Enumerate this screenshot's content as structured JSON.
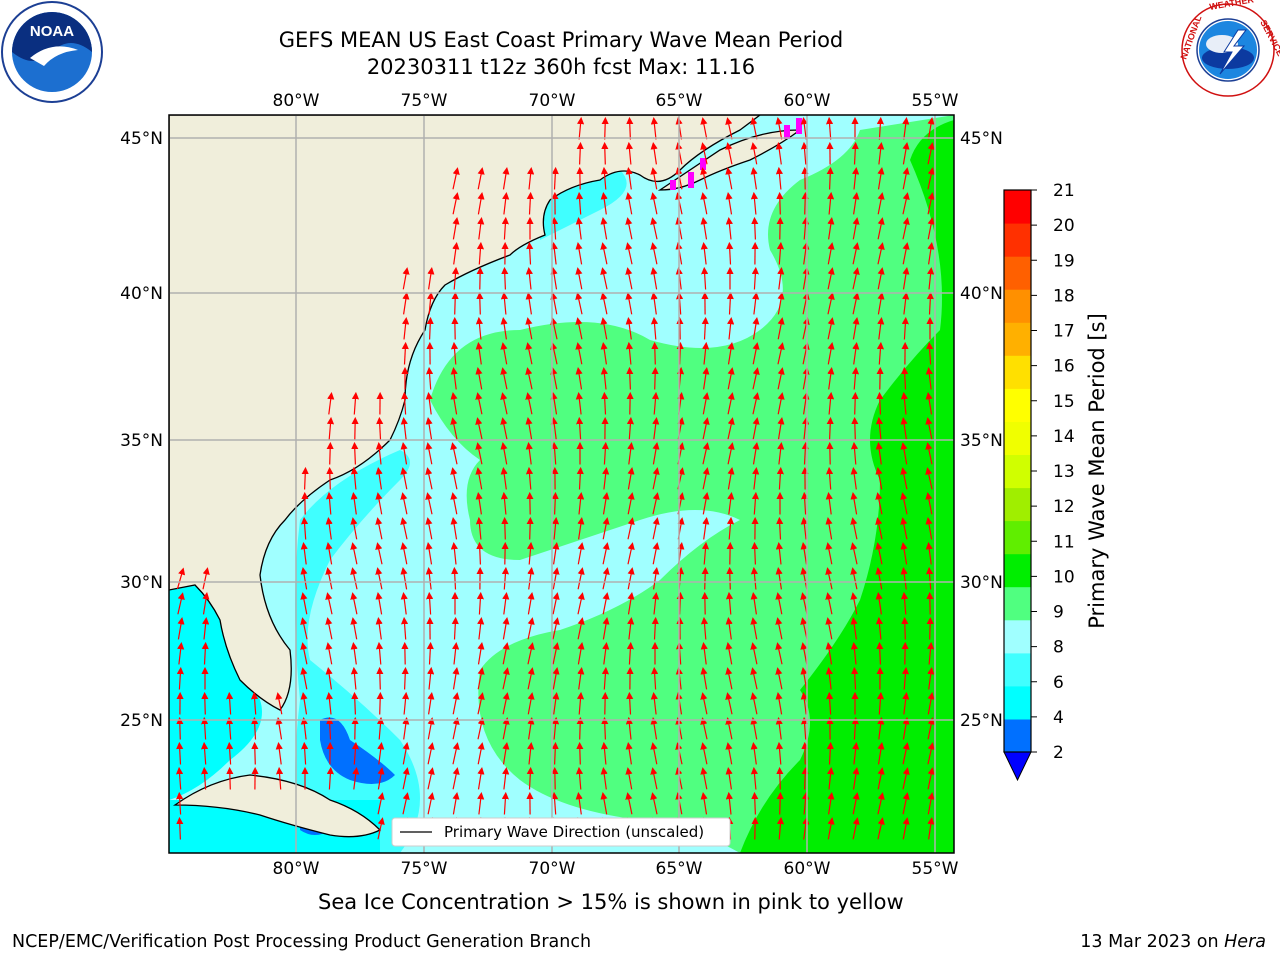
{
  "header": {
    "title_line1": "GEFS MEAN US East Coast Primary Wave Mean Period",
    "title_line2": "20230311 t12z 360h fcst   Max: 11.16"
  },
  "logos": {
    "left": "noaa-logo",
    "left_text": "NOAA",
    "right": "national-weather-service-logo",
    "right_ring_text": "NATIONAL WEATHER SERVICE"
  },
  "map": {
    "lon_ticks": [
      "80°W",
      "75°W",
      "70°W",
      "65°W",
      "60°W",
      "55°W"
    ],
    "lat_ticks": [
      "45°N",
      "40°N",
      "35°N",
      "30°N",
      "25°N"
    ],
    "legend_label": "Primary Wave Direction (unscaled)",
    "colors": {
      "land": "#f0eedb",
      "grid": "#b0b0b0",
      "arrow": "#ff0000",
      "ice": "#ff00ff"
    }
  },
  "colorbar": {
    "label": "Primary Wave Mean Period [s]",
    "ticks": [
      "21",
      "20",
      "19",
      "18",
      "17",
      "16",
      "15",
      "14",
      "13",
      "12",
      "11",
      "10",
      "9",
      "8",
      "6",
      "4",
      "2"
    ],
    "colors": [
      "#0000ff",
      "#0070ff",
      "#00ffff",
      "#40ffff",
      "#a0ffff",
      "#50ff80",
      "#00ee00",
      "#60ee00",
      "#a0ee00",
      "#d0ff00",
      "#f0ff00",
      "#ffff00",
      "#ffe000",
      "#ffb000",
      "#ff9000",
      "#ff6000",
      "#ff3000",
      "#ff0000"
    ]
  },
  "notes": {
    "ice": "Sea Ice Concentration > 15% is shown in pink to yellow"
  },
  "footer": {
    "left": "NCEP/EMC/Verification Post Processing Product Generation Branch",
    "date": "13 Mar 2023 on",
    "machine": "Hera"
  }
}
